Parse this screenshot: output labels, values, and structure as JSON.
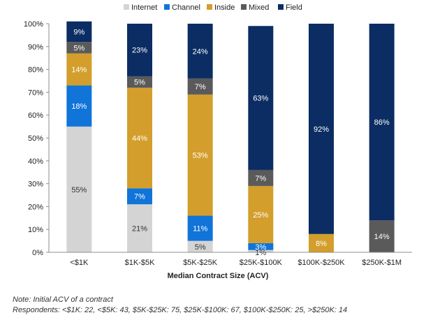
{
  "chart_data": {
    "type": "bar",
    "stacked": true,
    "categories": [
      "<$1K",
      "$1K-$5K",
      "$5K-$25K",
      "$25K-$100K",
      "$100K-$250K",
      "$250K-$1M"
    ],
    "series": [
      {
        "name": "Internet",
        "color": "#d4d4d4",
        "values": [
          55,
          21,
          5,
          1,
          0,
          0
        ],
        "labels": [
          "55%",
          "21%",
          "5%",
          "1%",
          "",
          ""
        ]
      },
      {
        "name": "Channel",
        "color": "#1074d8",
        "values": [
          18,
          7,
          11,
          3,
          0,
          0
        ],
        "labels": [
          "18%",
          "7%",
          "11%",
          "3%",
          "",
          ""
        ]
      },
      {
        "name": "Inside",
        "color": "#d39e2c",
        "values": [
          14,
          44,
          53,
          25,
          8,
          0
        ],
        "labels": [
          "14%",
          "44%",
          "53%",
          "25%",
          "8%",
          ""
        ]
      },
      {
        "name": "Mixed",
        "color": "#5a5a5a",
        "values": [
          5,
          5,
          7,
          7,
          0,
          14
        ],
        "labels": [
          "5%",
          "5%",
          "7%",
          "7%",
          "",
          "14%"
        ]
      },
      {
        "name": "Field",
        "color": "#0b2d63",
        "values": [
          9,
          23,
          24,
          63,
          92,
          86
        ],
        "labels": [
          "9%",
          "23%",
          "24%",
          "63%",
          "92%",
          "86%"
        ]
      }
    ],
    "xlabel": "Median Contract Size (ACV)",
    "ylabel": "",
    "ylim": [
      0,
      100
    ],
    "yticks": [
      "0%",
      "10%",
      "20%",
      "30%",
      "40%",
      "50%",
      "60%",
      "70%",
      "80%",
      "90%",
      "100%"
    ],
    "grid": false,
    "legend_position": "top"
  },
  "notes": {
    "line1": "Note: Initial ACV of a contract",
    "line2": "Respondents: <$1K: 22, <$5K: 43, $5K-$25K: 75, $25K-$100K: 67, $100K-$250K: 25, >$250K: 14"
  }
}
